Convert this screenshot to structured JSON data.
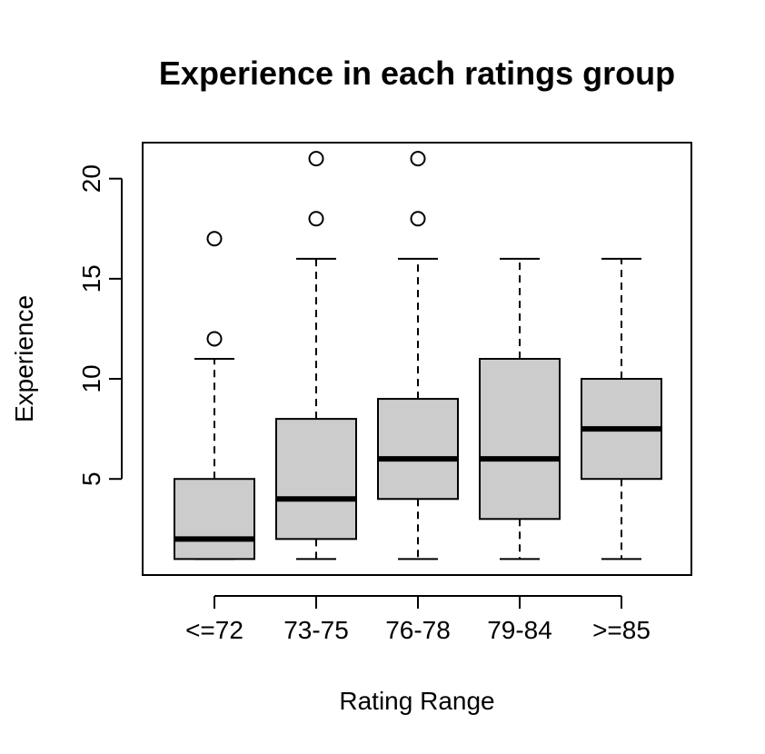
{
  "chart_data": {
    "type": "boxplot",
    "title": "Experience in each ratings group",
    "xlabel": "Rating Range",
    "ylabel": "Experience",
    "categories": [
      "<=72",
      "73-75",
      "76-78",
      "79-84",
      ">=85"
    ],
    "yticks": [
      5,
      10,
      15,
      20
    ],
    "ylim": [
      0.2,
      21.8
    ],
    "grid": false,
    "legend": "none",
    "box_fill": "#cccccc",
    "stroke_color": "#000000",
    "boxes": [
      {
        "category": "<=72",
        "whisker_low": 1,
        "q1": 1,
        "median": 2,
        "q3": 5,
        "whisker_high": 11,
        "outliers": [
          12,
          17
        ]
      },
      {
        "category": "73-75",
        "whisker_low": 1,
        "q1": 2,
        "median": 4,
        "q3": 8,
        "whisker_high": 16,
        "outliers": [
          18,
          21
        ]
      },
      {
        "category": "76-78",
        "whisker_low": 1,
        "q1": 4,
        "median": 6,
        "q3": 9,
        "whisker_high": 16,
        "outliers": [
          18,
          21
        ]
      },
      {
        "category": "79-84",
        "whisker_low": 1,
        "q1": 3,
        "median": 6,
        "q3": 11,
        "whisker_high": 16,
        "outliers": []
      },
      {
        "category": ">=85",
        "whisker_low": 1,
        "q1": 5,
        "median": 7.5,
        "q3": 10,
        "whisker_high": 16,
        "outliers": []
      }
    ]
  }
}
